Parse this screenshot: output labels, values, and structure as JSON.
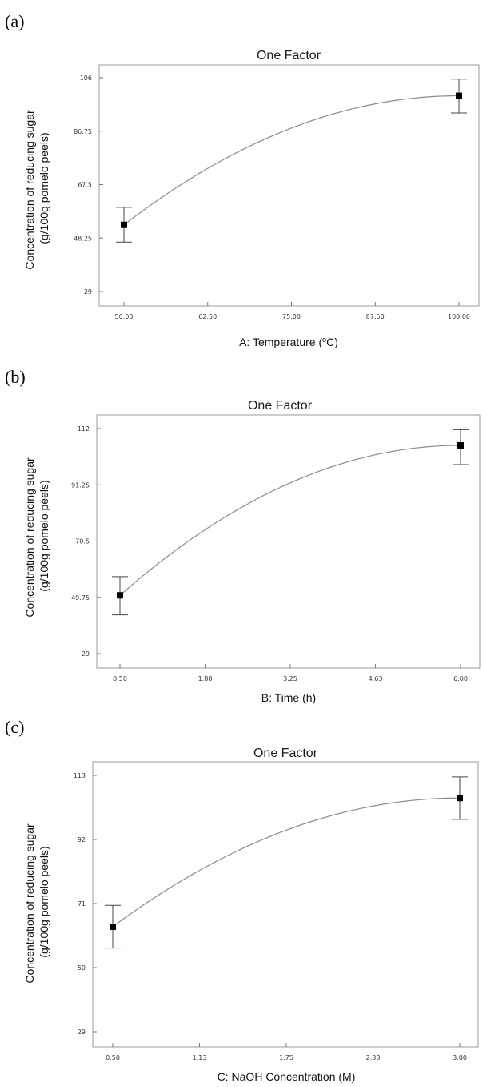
{
  "chart_data": [
    {
      "panel_label": "(a)",
      "type": "line",
      "title": "One Factor",
      "xlabel": "A: Temperature (",
      "xlabel_sup": "o",
      "xlabel_tail": "C)",
      "ylabel_lines": [
        "Concentration of reducing sugar",
        "(g/100g pomelo peels)"
      ],
      "xlim": [
        50,
        100
      ],
      "ylim": [
        29,
        106
      ],
      "x_ticks": [
        50,
        62.5,
        75,
        87.5,
        100
      ],
      "x_tick_labels": [
        "50.00",
        "62.50",
        "75.00",
        "87.50",
        "100.00"
      ],
      "y_ticks": [
        29,
        48.25,
        67.5,
        86.75,
        106
      ],
      "y_tick_labels": [
        "29",
        "48.25",
        "67.5",
        "86.75",
        "106"
      ],
      "points": [
        {
          "x": 50,
          "y": 53.0,
          "lo": 46.8,
          "hi": 59.3
        },
        {
          "x": 100,
          "y": 99.5,
          "hi": 105.5,
          "lo": 93.3
        }
      ],
      "curve_peak_x": 100
    },
    {
      "panel_label": "(b)",
      "type": "line",
      "title": "One Factor",
      "xlabel": "B: Time (h)",
      "ylabel_lines": [
        "Concentration of reducing sugar",
        "(g/100g pomelo peels)"
      ],
      "xlim": [
        0.5,
        6.0
      ],
      "ylim": [
        29,
        112
      ],
      "x_ticks": [
        0.5,
        1.875,
        3.25,
        4.625,
        6.0
      ],
      "x_tick_labels": [
        "0.50",
        "1.88",
        "3.25",
        "4.63",
        "6.00"
      ],
      "y_ticks": [
        29,
        49.75,
        70.5,
        91.25,
        112
      ],
      "y_tick_labels": [
        "29",
        "49.75",
        "70.5",
        "91.25",
        "112"
      ],
      "points": [
        {
          "x": 0.5,
          "y": 50.5,
          "lo": 43.3,
          "hi": 57.4
        },
        {
          "x": 6.0,
          "y": 105.8,
          "lo": 98.7,
          "hi": 111.6
        }
      ],
      "curve_peak_x": 6.0
    },
    {
      "panel_label": "(c)",
      "type": "line",
      "title": "One Factor",
      "xlabel": "C: NaOH Concentration (M)",
      "ylabel_lines": [
        "Concentration of reducing sugar",
        "(g/100g pomelo peels)"
      ],
      "xlim": [
        0.5,
        3.0
      ],
      "ylim": [
        29,
        113
      ],
      "x_ticks": [
        0.5,
        1.125,
        1.75,
        2.375,
        3.0
      ],
      "x_tick_labels": [
        "0.50",
        "1.13",
        "1.75",
        "2.38",
        "3.00"
      ],
      "y_ticks": [
        29,
        50,
        71,
        92,
        113
      ],
      "y_tick_labels": [
        "29",
        "50",
        "71",
        "92",
        "113"
      ],
      "points": [
        {
          "x": 0.5,
          "y": 63.4,
          "lo": 56.4,
          "hi": 70.4
        },
        {
          "x": 3.0,
          "y": 105.6,
          "lo": 98.6,
          "hi": 112.5
        }
      ],
      "curve_peak_x": 3.0
    }
  ]
}
